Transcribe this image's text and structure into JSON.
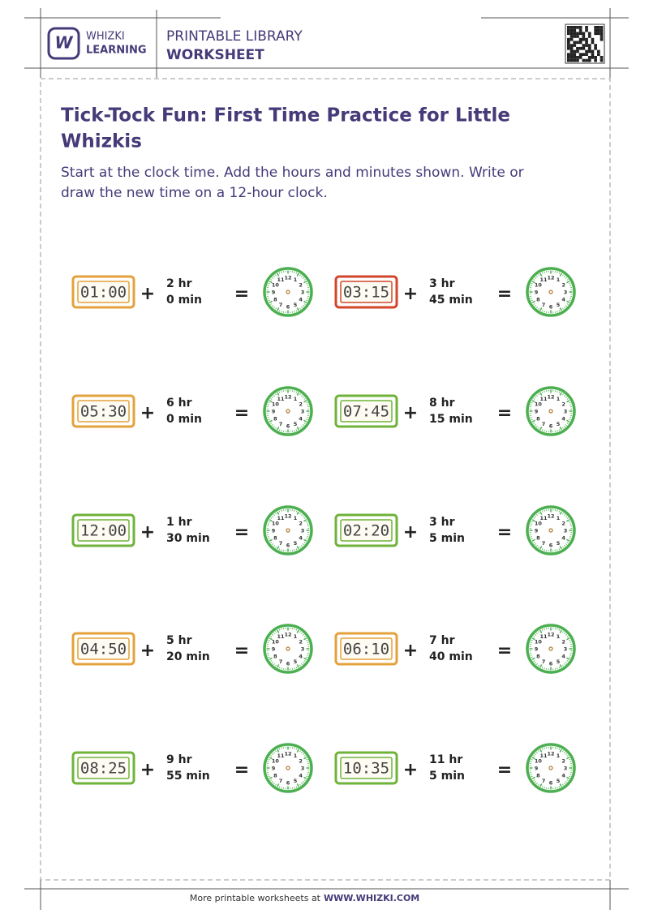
{
  "header": {
    "brand_top": "WHIZKI",
    "brand_bottom": "LEARNING",
    "library": "PRINTABLE LIBRARY",
    "kind": "WORKSHEET"
  },
  "title_lines": [
    "Tick-Tock Fun: First Time Practice for Little",
    "Whizkis"
  ],
  "instructions_lines": [
    "Start at the clock time. Add the hours and minutes shown. Write or",
    "draw the new time on a 12-hour clock."
  ],
  "operators": {
    "plus": "+",
    "equals": "="
  },
  "clock_numbers": [
    "12",
    "1",
    "2",
    "3",
    "4",
    "5",
    "6",
    "7",
    "8",
    "9",
    "10",
    "11"
  ],
  "problems": [
    {
      "start": "01:00",
      "frame_color": "#e3a23c",
      "hours": "2 hr",
      "minutes": "0 min"
    },
    {
      "start": "03:15",
      "frame_color": "#d2462b",
      "hours": "3 hr",
      "minutes": "45 min"
    },
    {
      "start": "05:30",
      "frame_color": "#e3a23c",
      "hours": "6 hr",
      "minutes": "0 min"
    },
    {
      "start": "07:45",
      "frame_color": "#6fb33a",
      "hours": "8 hr",
      "minutes": "15 min"
    },
    {
      "start": "12:00",
      "frame_color": "#6fb33a",
      "hours": "1 hr",
      "minutes": "30 min"
    },
    {
      "start": "02:20",
      "frame_color": "#6fb33a",
      "hours": "3 hr",
      "minutes": "5 min"
    },
    {
      "start": "04:50",
      "frame_color": "#e3a23c",
      "hours": "5 hr",
      "minutes": "20 min"
    },
    {
      "start": "06:10",
      "frame_color": "#e3a23c",
      "hours": "7 hr",
      "minutes": "40 min"
    },
    {
      "start": "08:25",
      "frame_color": "#6fb33a",
      "hours": "9 hr",
      "minutes": "55 min"
    },
    {
      "start": "10:35",
      "frame_color": "#6fb33a",
      "hours": "11 hr",
      "minutes": "5 min"
    }
  ],
  "footer": {
    "lead": "More printable worksheets at",
    "site": "WWW.WHIZKI.COM"
  }
}
